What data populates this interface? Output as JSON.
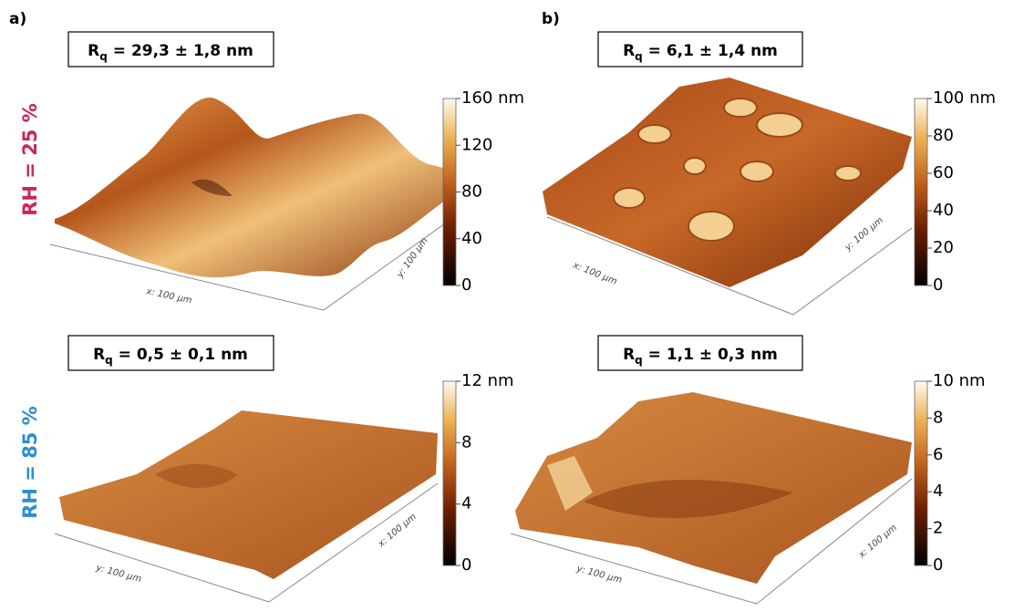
{
  "panel_labels": [
    "a)",
    "b)"
  ],
  "rows": [
    "RH = 25 %",
    "RH = 85 %"
  ],
  "panels": [
    {
      "rq": {
        "symbol": "R",
        "sub": "q",
        "text": " = 29,3 ± 1,8 nm"
      },
      "colorbar": [
        "160 nm",
        "120",
        "80",
        "40",
        "0"
      ],
      "x_axis": "x: 100 µm",
      "y_axis": "y: 100 µm"
    },
    {
      "rq": {
        "symbol": "R",
        "sub": "q",
        "text": " = 6,1 ± 1,4 nm"
      },
      "colorbar": [
        "100 nm",
        "80",
        "60",
        "40",
        "20",
        "0"
      ],
      "x_axis": "x: 100 µm",
      "y_axis": "y: 100 µm"
    },
    {
      "rq": {
        "symbol": "R",
        "sub": "q",
        "text": " = 0,5 ± 0,1 nm"
      },
      "colorbar": [
        "12 nm",
        "8",
        "4",
        "0"
      ],
      "x_axis": "x: 100 µm",
      "y_axis": "y: 100 µm"
    },
    {
      "rq": {
        "symbol": "R",
        "sub": "q",
        "text": " = 1,1 ± 0,3 nm"
      },
      "colorbar": [
        "10 nm",
        "8",
        "6",
        "4",
        "2",
        "0"
      ],
      "x_axis": "x: 100 µm",
      "y_axis": "y: 100 µm"
    }
  ]
}
